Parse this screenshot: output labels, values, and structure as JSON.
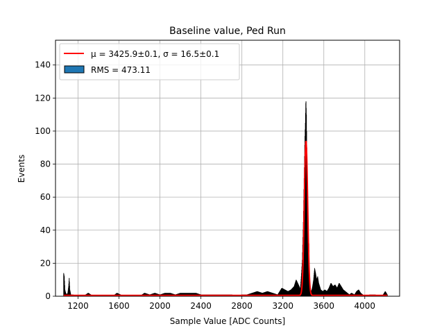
{
  "chart_data": {
    "type": "bar",
    "title": "Baseline value, Ped Run",
    "xlabel": "Sample Value [ADC Counts]",
    "ylabel": "Events",
    "xlim": [
      980,
      4340
    ],
    "ylim": [
      0,
      155
    ],
    "xticks": [
      1200,
      1600,
      2000,
      2400,
      2800,
      3200,
      3600,
      4000
    ],
    "yticks": [
      0,
      20,
      40,
      60,
      80,
      100,
      120,
      140
    ],
    "grid": true,
    "legend_position": "top-left",
    "legend": [
      {
        "label": "$\\mu = 3425.9\\pm0.1$, $\\sigma = 16.5\\pm0.1$",
        "text": "μ = 3425.9±0.1, σ = 16.5±0.1",
        "kind": "line",
        "color": "#ff0000"
      },
      {
        "label": "RMS = 473.11",
        "text": "RMS = 473.11",
        "kind": "patch",
        "color": "#1f77b4"
      }
    ],
    "histogram": {
      "color": "#000000",
      "points": [
        [
          1060,
          14
        ],
        [
          1066,
          12
        ],
        [
          1072,
          4
        ],
        [
          1080,
          2
        ],
        [
          1090,
          1
        ],
        [
          1100,
          2
        ],
        [
          1108,
          6
        ],
        [
          1114,
          11
        ],
        [
          1120,
          4
        ],
        [
          1130,
          1
        ],
        [
          1150,
          1
        ],
        [
          1200,
          0
        ],
        [
          1250,
          0
        ],
        [
          1300,
          2
        ],
        [
          1350,
          0
        ],
        [
          1400,
          0
        ],
        [
          1500,
          0
        ],
        [
          1560,
          1
        ],
        [
          1580,
          2
        ],
        [
          1650,
          0
        ],
        [
          1700,
          0
        ],
        [
          1800,
          0
        ],
        [
          1850,
          2
        ],
        [
          1900,
          1
        ],
        [
          1950,
          2
        ],
        [
          2000,
          1
        ],
        [
          2050,
          2
        ],
        [
          2100,
          2
        ],
        [
          2150,
          1
        ],
        [
          2200,
          2
        ],
        [
          2250,
          2
        ],
        [
          2300,
          2
        ],
        [
          2350,
          2
        ],
        [
          2400,
          1
        ],
        [
          2450,
          1
        ],
        [
          2500,
          1
        ],
        [
          2550,
          1
        ],
        [
          2600,
          1
        ],
        [
          2650,
          1
        ],
        [
          2700,
          1
        ],
        [
          2750,
          0
        ],
        [
          2800,
          1
        ],
        [
          2850,
          1
        ],
        [
          2900,
          2
        ],
        [
          2950,
          3
        ],
        [
          3000,
          2
        ],
        [
          3050,
          3
        ],
        [
          3100,
          2
        ],
        [
          3150,
          1
        ],
        [
          3190,
          5
        ],
        [
          3220,
          4
        ],
        [
          3250,
          3
        ],
        [
          3280,
          4
        ],
        [
          3310,
          6
        ],
        [
          3330,
          10
        ],
        [
          3345,
          8
        ],
        [
          3360,
          6
        ],
        [
          3370,
          4
        ],
        [
          3380,
          12
        ],
        [
          3390,
          22
        ],
        [
          3400,
          45
        ],
        [
          3410,
          78
        ],
        [
          3415,
          95
        ],
        [
          3420,
          105
        ],
        [
          3425,
          120
        ],
        [
          3430,
          110
        ],
        [
          3435,
          85
        ],
        [
          3440,
          55
        ],
        [
          3445,
          35
        ],
        [
          3450,
          28
        ],
        [
          3455,
          33
        ],
        [
          3460,
          8
        ],
        [
          3470,
          4
        ],
        [
          3480,
          3
        ],
        [
          3490,
          6
        ],
        [
          3500,
          10
        ],
        [
          3510,
          17
        ],
        [
          3520,
          14
        ],
        [
          3530,
          10
        ],
        [
          3540,
          12
        ],
        [
          3550,
          8
        ],
        [
          3560,
          6
        ],
        [
          3570,
          4
        ],
        [
          3590,
          3
        ],
        [
          3610,
          4
        ],
        [
          3630,
          3
        ],
        [
          3650,
          5
        ],
        [
          3670,
          8
        ],
        [
          3690,
          6
        ],
        [
          3710,
          7
        ],
        [
          3730,
          5
        ],
        [
          3750,
          8
        ],
        [
          3770,
          6
        ],
        [
          3790,
          4
        ],
        [
          3810,
          3
        ],
        [
          3830,
          2
        ],
        [
          3850,
          1
        ],
        [
          3870,
          2
        ],
        [
          3900,
          1
        ],
        [
          3920,
          3
        ],
        [
          3940,
          4
        ],
        [
          3960,
          2
        ],
        [
          3980,
          1
        ],
        [
          4000,
          0
        ],
        [
          4050,
          1
        ],
        [
          4100,
          1
        ],
        [
          4150,
          0
        ],
        [
          4180,
          1
        ],
        [
          4200,
          3
        ],
        [
          4220,
          1
        ]
      ]
    },
    "fit": {
      "color": "#ff0000",
      "mu": 3425.9,
      "sigma": 16.5,
      "amplitude": 93.5,
      "baseline": 0.5
    }
  }
}
